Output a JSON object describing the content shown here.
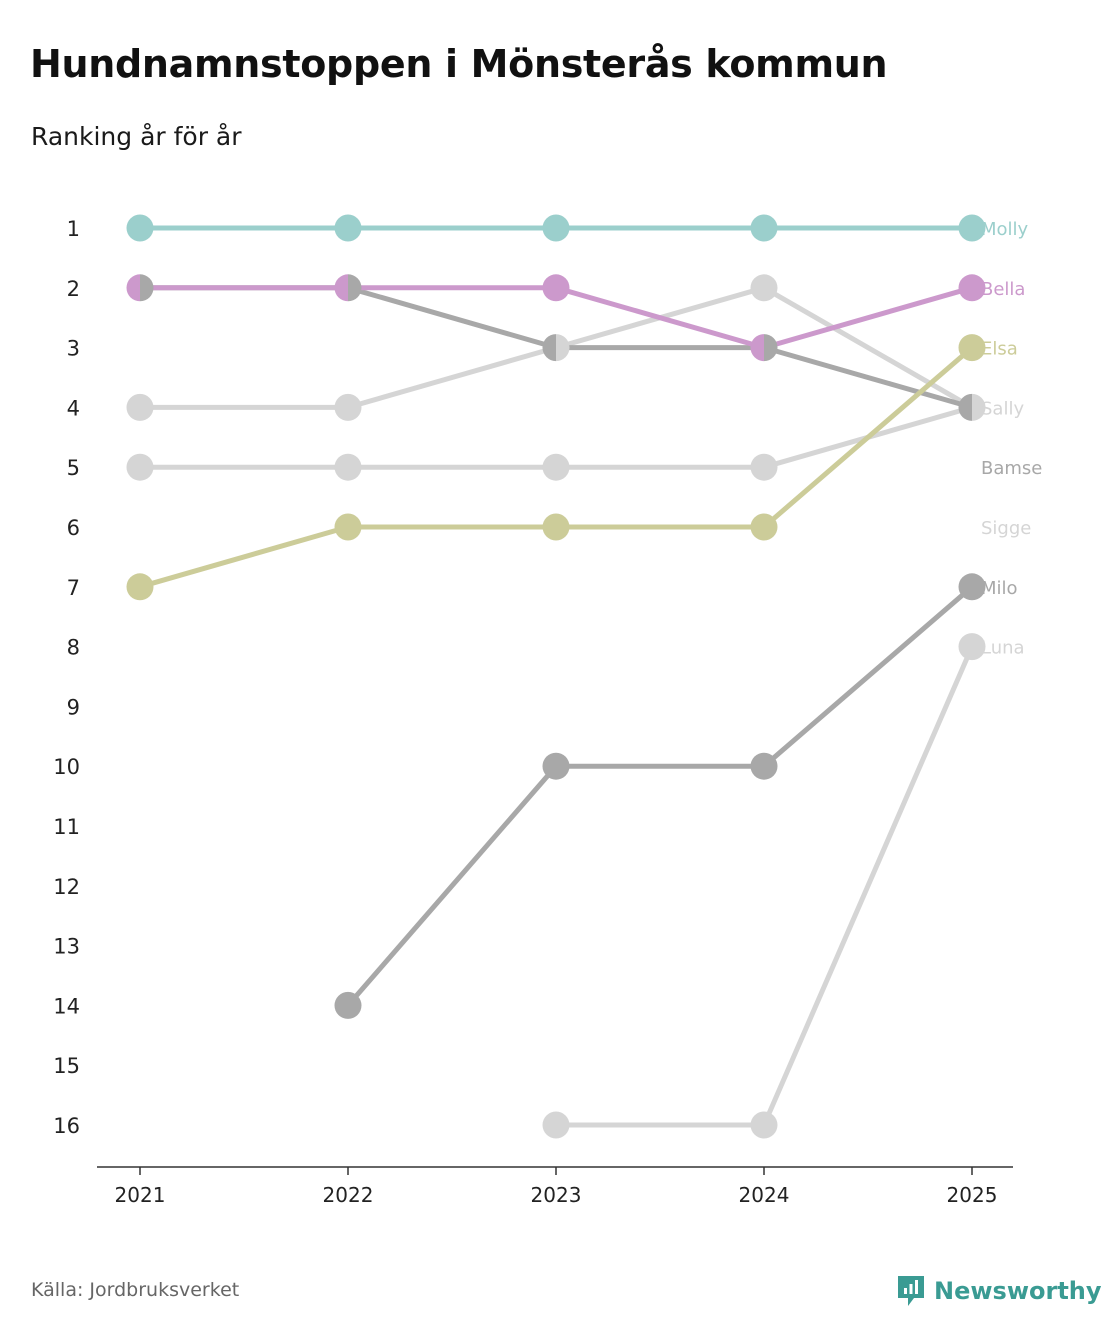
{
  "title": "Hundnamnstoppen i Mönsterås kommun",
  "subtitle": "Ranking år för år",
  "source": "Källa: Jordbruksverket",
  "brand": "Newsworthy",
  "colors": {
    "teal": "#9bcfcc",
    "purple": "#cc99cc",
    "olive": "#cccc99",
    "gray": "#a8a8a8",
    "lightgray": "#d5d5d5",
    "darkgray": "#6e6e74",
    "brand": "#3a9b93"
  },
  "chart_data": {
    "type": "line",
    "subtype": "bump",
    "title": "Hundnamnstoppen i Mönsterås kommun",
    "subtitle": "Ranking år för år",
    "x": [
      "2021",
      "2022",
      "2023",
      "2024",
      "2025"
    ],
    "ylim": [
      1,
      16
    ],
    "y_reversed": true,
    "y_ticks": [
      "1",
      "2",
      "3",
      "4",
      "5",
      "6",
      "7",
      "8",
      "9",
      "10",
      "11",
      "12",
      "13",
      "14",
      "15",
      "16"
    ],
    "series": [
      {
        "name": "Molly",
        "values": [
          1,
          1,
          1,
          1,
          1
        ],
        "color": "#9bcfcc",
        "label_color": "#9bcfcc"
      },
      {
        "name": "Bella",
        "values": [
          2,
          2,
          2,
          3,
          2
        ],
        "color": "#cc99cc",
        "label_color": "#cc99cc"
      },
      {
        "name": "Elsa",
        "values": [
          7,
          6,
          6,
          6,
          3
        ],
        "color": "#cccc99",
        "label_color": "#cccc99"
      },
      {
        "name": "Sally",
        "values": [
          4,
          4,
          3,
          2,
          4
        ],
        "color": "#d5d5d5",
        "label_color": "#d5d5d5"
      },
      {
        "name": "Bamse",
        "values": [
          2,
          2,
          3,
          3,
          4
        ],
        "color": "#a8a8a8",
        "label_color": "#a8a8a8"
      },
      {
        "name": "Sigge",
        "values": [
          5,
          5,
          5,
          5,
          4
        ],
        "color": "#d5d5d5",
        "label_color": "#d5d5d5"
      },
      {
        "name": "Milo",
        "values": [
          null,
          14,
          10,
          10,
          7
        ],
        "color": "#a8a8a8",
        "label_color": "#a8a8a8"
      },
      {
        "name": "Luna",
        "values": [
          null,
          null,
          16,
          16,
          8
        ],
        "color": "#d5d5d5",
        "label_color": "#d5d5d5"
      }
    ],
    "end_labels": [
      {
        "text": "Molly",
        "rank": 1,
        "color": "#9bcfcc"
      },
      {
        "text": "Bella",
        "rank": 2,
        "color": "#cc99cc"
      },
      {
        "text": "Elsa",
        "rank": 3,
        "color": "#cccc99"
      },
      {
        "text": "Sally",
        "rank": 4,
        "color": "#d5d5d5"
      },
      {
        "text": "Bamse",
        "rank": 5,
        "color": "#a8a8a8"
      },
      {
        "text": "Sigge",
        "rank": 6,
        "color": "#d5d5d5"
      },
      {
        "text": "Milo",
        "rank": 7,
        "color": "#a8a8a8"
      },
      {
        "text": "Luna",
        "rank": 8,
        "color": "#d5d5d5"
      }
    ],
    "xlabel": "",
    "ylabel": ""
  }
}
